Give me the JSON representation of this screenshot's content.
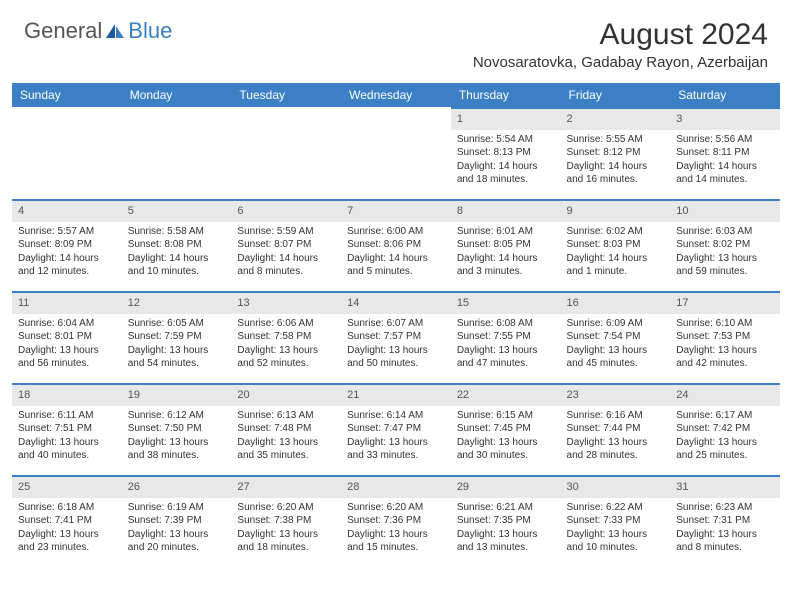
{
  "logo": {
    "general": "General",
    "blue": "Blue"
  },
  "title": "August 2024",
  "location": "Novosaratovka, Gadabay Rayon, Azerbaijan",
  "columns": [
    "Sunday",
    "Monday",
    "Tuesday",
    "Wednesday",
    "Thursday",
    "Friday",
    "Saturday"
  ],
  "colors": {
    "header_bg": "#3b7fc4",
    "header_text": "#ffffff",
    "daynum_bg": "#e8e8e8",
    "daynum_border": "#3b7fc4",
    "body_bg": "#ffffff",
    "text": "#333333"
  },
  "weeks": [
    [
      null,
      null,
      null,
      null,
      {
        "n": "1",
        "sr": "5:54 AM",
        "ss": "8:13 PM",
        "dl": "14 hours and 18 minutes."
      },
      {
        "n": "2",
        "sr": "5:55 AM",
        "ss": "8:12 PM",
        "dl": "14 hours and 16 minutes."
      },
      {
        "n": "3",
        "sr": "5:56 AM",
        "ss": "8:11 PM",
        "dl": "14 hours and 14 minutes."
      }
    ],
    [
      {
        "n": "4",
        "sr": "5:57 AM",
        "ss": "8:09 PM",
        "dl": "14 hours and 12 minutes."
      },
      {
        "n": "5",
        "sr": "5:58 AM",
        "ss": "8:08 PM",
        "dl": "14 hours and 10 minutes."
      },
      {
        "n": "6",
        "sr": "5:59 AM",
        "ss": "8:07 PM",
        "dl": "14 hours and 8 minutes."
      },
      {
        "n": "7",
        "sr": "6:00 AM",
        "ss": "8:06 PM",
        "dl": "14 hours and 5 minutes."
      },
      {
        "n": "8",
        "sr": "6:01 AM",
        "ss": "8:05 PM",
        "dl": "14 hours and 3 minutes."
      },
      {
        "n": "9",
        "sr": "6:02 AM",
        "ss": "8:03 PM",
        "dl": "14 hours and 1 minute."
      },
      {
        "n": "10",
        "sr": "6:03 AM",
        "ss": "8:02 PM",
        "dl": "13 hours and 59 minutes."
      }
    ],
    [
      {
        "n": "11",
        "sr": "6:04 AM",
        "ss": "8:01 PM",
        "dl": "13 hours and 56 minutes."
      },
      {
        "n": "12",
        "sr": "6:05 AM",
        "ss": "7:59 PM",
        "dl": "13 hours and 54 minutes."
      },
      {
        "n": "13",
        "sr": "6:06 AM",
        "ss": "7:58 PM",
        "dl": "13 hours and 52 minutes."
      },
      {
        "n": "14",
        "sr": "6:07 AM",
        "ss": "7:57 PM",
        "dl": "13 hours and 50 minutes."
      },
      {
        "n": "15",
        "sr": "6:08 AM",
        "ss": "7:55 PM",
        "dl": "13 hours and 47 minutes."
      },
      {
        "n": "16",
        "sr": "6:09 AM",
        "ss": "7:54 PM",
        "dl": "13 hours and 45 minutes."
      },
      {
        "n": "17",
        "sr": "6:10 AM",
        "ss": "7:53 PM",
        "dl": "13 hours and 42 minutes."
      }
    ],
    [
      {
        "n": "18",
        "sr": "6:11 AM",
        "ss": "7:51 PM",
        "dl": "13 hours and 40 minutes."
      },
      {
        "n": "19",
        "sr": "6:12 AM",
        "ss": "7:50 PM",
        "dl": "13 hours and 38 minutes."
      },
      {
        "n": "20",
        "sr": "6:13 AM",
        "ss": "7:48 PM",
        "dl": "13 hours and 35 minutes."
      },
      {
        "n": "21",
        "sr": "6:14 AM",
        "ss": "7:47 PM",
        "dl": "13 hours and 33 minutes."
      },
      {
        "n": "22",
        "sr": "6:15 AM",
        "ss": "7:45 PM",
        "dl": "13 hours and 30 minutes."
      },
      {
        "n": "23",
        "sr": "6:16 AM",
        "ss": "7:44 PM",
        "dl": "13 hours and 28 minutes."
      },
      {
        "n": "24",
        "sr": "6:17 AM",
        "ss": "7:42 PM",
        "dl": "13 hours and 25 minutes."
      }
    ],
    [
      {
        "n": "25",
        "sr": "6:18 AM",
        "ss": "7:41 PM",
        "dl": "13 hours and 23 minutes."
      },
      {
        "n": "26",
        "sr": "6:19 AM",
        "ss": "7:39 PM",
        "dl": "13 hours and 20 minutes."
      },
      {
        "n": "27",
        "sr": "6:20 AM",
        "ss": "7:38 PM",
        "dl": "13 hours and 18 minutes."
      },
      {
        "n": "28",
        "sr": "6:20 AM",
        "ss": "7:36 PM",
        "dl": "13 hours and 15 minutes."
      },
      {
        "n": "29",
        "sr": "6:21 AM",
        "ss": "7:35 PM",
        "dl": "13 hours and 13 minutes."
      },
      {
        "n": "30",
        "sr": "6:22 AM",
        "ss": "7:33 PM",
        "dl": "13 hours and 10 minutes."
      },
      {
        "n": "31",
        "sr": "6:23 AM",
        "ss": "7:31 PM",
        "dl": "13 hours and 8 minutes."
      }
    ]
  ],
  "labels": {
    "sunrise": "Sunrise:",
    "sunset": "Sunset:",
    "daylight": "Daylight:"
  }
}
